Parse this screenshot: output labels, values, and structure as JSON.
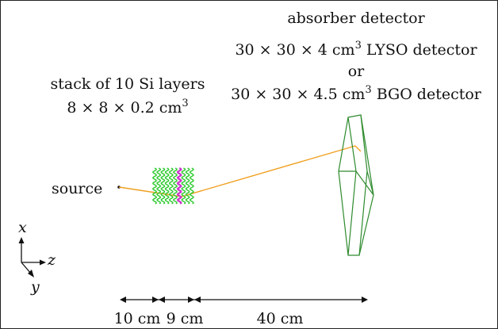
{
  "absorber": {
    "title": "absorber detector",
    "lyso_prefix": "30 × 30 × 4 cm",
    "lyso_exp": "3",
    "lyso_suffix": " LYSO detector",
    "or": "or",
    "bgo_prefix": "30 × 30 × 4.5 cm",
    "bgo_exp": "3",
    "bgo_suffix": " BGO detector"
  },
  "scatterer": {
    "title": "stack of 10 Si layers",
    "dims_prefix": "8 × 8 × 0.2 cm",
    "dims_exp": "3",
    "layer_count": 10
  },
  "source": {
    "label": "source"
  },
  "axes": {
    "x": "x",
    "z": "z",
    "y": "y"
  },
  "distances": [
    {
      "label": "10 cm"
    },
    {
      "label": "9 cm"
    },
    {
      "label": "40 cm"
    }
  ],
  "colors": {
    "si_layers": "#33cc33",
    "highlight_layer": "#cc33cc",
    "absorber": "#2e8b2e",
    "beam": "#f0a020",
    "ink": "#111111"
  }
}
